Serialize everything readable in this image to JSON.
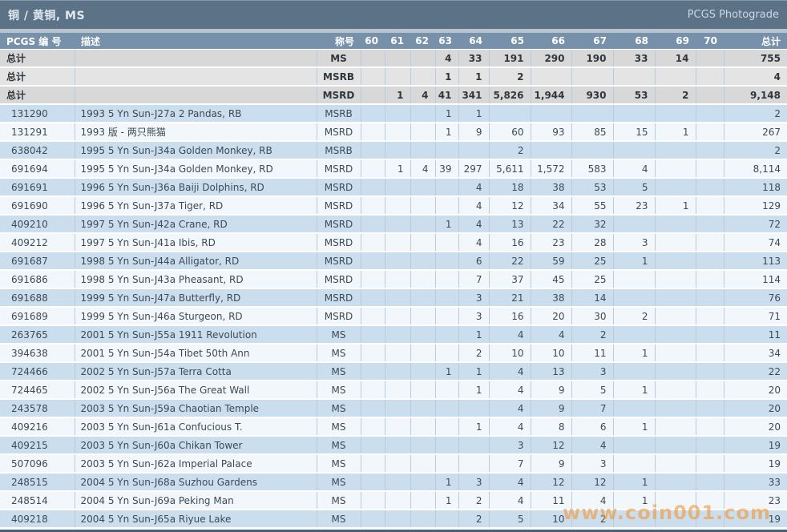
{
  "title_bar": {
    "title": "铜 / 黄铜, MS",
    "right_link": "PCGS Photograde"
  },
  "table": {
    "headers": {
      "pcgs": "PCGS 编 号",
      "desc": "描述",
      "designation": "称号",
      "grades": [
        "60",
        "61",
        "62",
        "63",
        "64",
        "65",
        "66",
        "67",
        "68",
        "69",
        "70"
      ],
      "total": "总计"
    },
    "total_label": "总计",
    "total_rows": [
      {
        "designation": "MS",
        "grades": [
          "",
          "",
          "",
          "4",
          "33",
          "191",
          "290",
          "190",
          "33",
          "14",
          ""
        ],
        "total": "755"
      },
      {
        "designation": "MSRB",
        "grades": [
          "",
          "",
          "",
          "1",
          "1",
          "2",
          "",
          "",
          "",
          "",
          ""
        ],
        "total": "4"
      },
      {
        "designation": "MSRD",
        "grades": [
          "",
          "1",
          "4",
          "41",
          "341",
          "5,826",
          "1,944",
          "930",
          "53",
          "2",
          ""
        ],
        "total": "9,148"
      }
    ],
    "rows": [
      {
        "pcgs": "131290",
        "desc": "1993 5 Yn Sun-J27a 2 Pandas, RB",
        "designation": "MSRB",
        "grades": [
          "",
          "",
          "",
          "1",
          "1",
          "",
          "",
          "",
          "",
          "",
          ""
        ],
        "total": "2"
      },
      {
        "pcgs": "131291",
        "desc": "1993 版 - 两只熊猫",
        "designation": "MSRD",
        "grades": [
          "",
          "",
          "",
          "1",
          "9",
          "60",
          "93",
          "85",
          "15",
          "1",
          ""
        ],
        "total": "267"
      },
      {
        "pcgs": "638042",
        "desc": "1995 5 Yn Sun-J34a Golden Monkey, RB",
        "designation": "MSRB",
        "grades": [
          "",
          "",
          "",
          "",
          "",
          "2",
          "",
          "",
          "",
          "",
          ""
        ],
        "total": "2"
      },
      {
        "pcgs": "691694",
        "desc": "1995 5 Yn Sun-J34a Golden Monkey, RD",
        "designation": "MSRD",
        "grades": [
          "",
          "1",
          "4",
          "39",
          "297",
          "5,611",
          "1,572",
          "583",
          "4",
          "",
          ""
        ],
        "total": "8,114"
      },
      {
        "pcgs": "691691",
        "desc": "1996 5 Yn Sun-J36a Baiji Dolphins, RD",
        "designation": "MSRD",
        "grades": [
          "",
          "",
          "",
          "",
          "4",
          "18",
          "38",
          "53",
          "5",
          "",
          ""
        ],
        "total": "118"
      },
      {
        "pcgs": "691690",
        "desc": "1996 5 Yn Sun-J37a Tiger, RD",
        "designation": "MSRD",
        "grades": [
          "",
          "",
          "",
          "",
          "4",
          "12",
          "34",
          "55",
          "23",
          "1",
          ""
        ],
        "total": "129"
      },
      {
        "pcgs": "409210",
        "desc": "1997 5 Yn Sun-J42a Crane, RD",
        "designation": "MSRD",
        "grades": [
          "",
          "",
          "",
          "1",
          "4",
          "13",
          "22",
          "32",
          "",
          "",
          ""
        ],
        "total": "72"
      },
      {
        "pcgs": "409212",
        "desc": "1997 5 Yn Sun-J41a Ibis, RD",
        "designation": "MSRD",
        "grades": [
          "",
          "",
          "",
          "",
          "4",
          "16",
          "23",
          "28",
          "3",
          "",
          ""
        ],
        "total": "74"
      },
      {
        "pcgs": "691687",
        "desc": "1998 5 Yn Sun-J44a Alligator, RD",
        "designation": "MSRD",
        "grades": [
          "",
          "",
          "",
          "",
          "6",
          "22",
          "59",
          "25",
          "1",
          "",
          ""
        ],
        "total": "113"
      },
      {
        "pcgs": "691686",
        "desc": "1998 5 Yn Sun-J43a Pheasant, RD",
        "designation": "MSRD",
        "grades": [
          "",
          "",
          "",
          "",
          "7",
          "37",
          "45",
          "25",
          "",
          "",
          ""
        ],
        "total": "114"
      },
      {
        "pcgs": "691688",
        "desc": "1999 5 Yn Sun-J47a Butterfly, RD",
        "designation": "MSRD",
        "grades": [
          "",
          "",
          "",
          "",
          "3",
          "21",
          "38",
          "14",
          "",
          "",
          ""
        ],
        "total": "76"
      },
      {
        "pcgs": "691689",
        "desc": "1999 5 Yn Sun-J46a Sturgeon, RD",
        "designation": "MSRD",
        "grades": [
          "",
          "",
          "",
          "",
          "3",
          "16",
          "20",
          "30",
          "2",
          "",
          ""
        ],
        "total": "71"
      },
      {
        "pcgs": "263765",
        "desc": "2001 5 Yn Sun-J55a 1911 Revolution",
        "designation": "MS",
        "grades": [
          "",
          "",
          "",
          "",
          "1",
          "4",
          "4",
          "2",
          "",
          "",
          ""
        ],
        "total": "11"
      },
      {
        "pcgs": "394638",
        "desc": "2001 5 Yn Sun-J54a Tibet 50th Ann",
        "designation": "MS",
        "grades": [
          "",
          "",
          "",
          "",
          "2",
          "10",
          "10",
          "11",
          "1",
          "",
          ""
        ],
        "total": "34"
      },
      {
        "pcgs": "724466",
        "desc": "2002 5 Yn Sun-J57a Terra Cotta",
        "designation": "MS",
        "grades": [
          "",
          "",
          "",
          "1",
          "1",
          "4",
          "13",
          "3",
          "",
          "",
          ""
        ],
        "total": "22"
      },
      {
        "pcgs": "724465",
        "desc": "2002 5 Yn Sun-J56a The Great Wall",
        "designation": "MS",
        "grades": [
          "",
          "",
          "",
          "",
          "1",
          "4",
          "9",
          "5",
          "1",
          "",
          ""
        ],
        "total": "20"
      },
      {
        "pcgs": "243578",
        "desc": "2003 5 Yn Sun-J59a Chaotian Temple",
        "designation": "MS",
        "grades": [
          "",
          "",
          "",
          "",
          "",
          "4",
          "9",
          "7",
          "",
          "",
          ""
        ],
        "total": "20"
      },
      {
        "pcgs": "409216",
        "desc": "2003 5 Yn Sun-J61a Confucious T.",
        "designation": "MS",
        "grades": [
          "",
          "",
          "",
          "",
          "1",
          "4",
          "8",
          "6",
          "1",
          "",
          ""
        ],
        "total": "20"
      },
      {
        "pcgs": "409215",
        "desc": "2003 5 Yn Sun-J60a Chikan Tower",
        "designation": "MS",
        "grades": [
          "",
          "",
          "",
          "",
          "",
          "3",
          "12",
          "4",
          "",
          "",
          ""
        ],
        "total": "19"
      },
      {
        "pcgs": "507096",
        "desc": "2003 5 Yn Sun-J62a Imperial Palace",
        "designation": "MS",
        "grades": [
          "",
          "",
          "",
          "",
          "",
          "7",
          "9",
          "3",
          "",
          "",
          ""
        ],
        "total": "19"
      },
      {
        "pcgs": "248515",
        "desc": "2004 5 Yn Sun-J68a Suzhou Gardens",
        "designation": "MS",
        "grades": [
          "",
          "",
          "",
          "1",
          "3",
          "4",
          "12",
          "12",
          "1",
          "",
          ""
        ],
        "total": "33"
      },
      {
        "pcgs": "248514",
        "desc": "2004 5 Yn Sun-J69a Peking Man",
        "designation": "MS",
        "grades": [
          "",
          "",
          "",
          "1",
          "2",
          "4",
          "11",
          "4",
          "1",
          "",
          ""
        ],
        "total": "23"
      },
      {
        "pcgs": "409218",
        "desc": "2004 5 Yn Sun-J65a Riyue Lake",
        "designation": "MS",
        "grades": [
          "",
          "",
          "",
          "",
          "2",
          "5",
          "10",
          "2",
          "",
          "",
          ""
        ],
        "total": "19"
      }
    ]
  },
  "watermark": "www.coin001.com",
  "colors": {
    "title_bar_bg": "#5c7287",
    "header_bg": "#7691a9",
    "row_blue": "#cbdeee",
    "row_light": "#f2f7fb",
    "total_gray": "#d8d8d8",
    "pcgs_link": "#b57150",
    "watermark": "#f2993c"
  }
}
